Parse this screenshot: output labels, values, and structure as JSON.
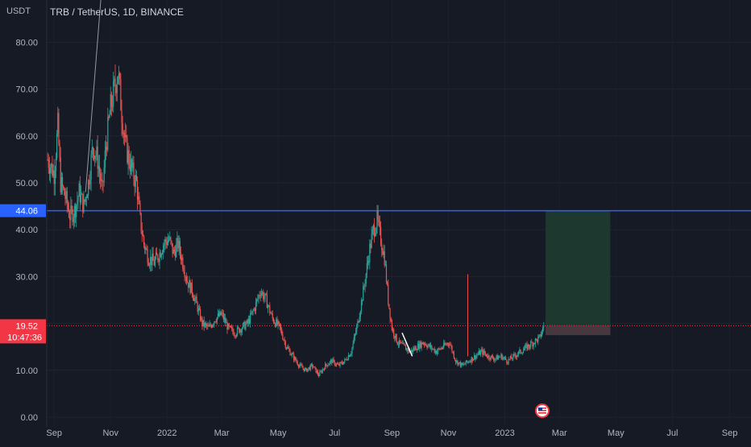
{
  "header": {
    "currency": "USDT",
    "title": "TRB / TetherUS, 1D, BINANCE"
  },
  "tags": {
    "resistance": "44.06",
    "price": "19.52",
    "countdown": "10:47:36"
  },
  "colors": {
    "background": "#161a25",
    "up": "#26a69a",
    "down": "#ef5350",
    "resistance_line": "#2962ff",
    "price_line": "#f23645",
    "target_zone": "#1e3a2f",
    "stop_zone": "#4a3a40"
  },
  "icons": {
    "event_flag": "us-flag-icon"
  },
  "chart_data": {
    "type": "candlestick",
    "title": "TRB / TetherUS, 1D, BINANCE",
    "ylabel": "USDT",
    "ylim": [
      0,
      85
    ],
    "yticks": [
      0,
      10,
      20,
      30,
      40,
      50,
      60,
      70,
      80
    ],
    "ytick_labels": [
      "0.00",
      "10.00",
      "",
      "30.00",
      "40.00",
      "50.00",
      "60.00",
      "70.00",
      "80.00"
    ],
    "xlim": [
      "2021-08-24",
      "2023-09-24"
    ],
    "xticks": [
      {
        "date": "2021-09-01",
        "label": "Sep"
      },
      {
        "date": "2021-11-01",
        "label": "Nov"
      },
      {
        "date": "2022-01-01",
        "label": "2022"
      },
      {
        "date": "2022-03-01",
        "label": "Mar"
      },
      {
        "date": "2022-05-01",
        "label": "May"
      },
      {
        "date": "2022-07-01",
        "label": "Jul"
      },
      {
        "date": "2022-09-01",
        "label": "Sep"
      },
      {
        "date": "2022-11-01",
        "label": "Nov"
      },
      {
        "date": "2023-01-01",
        "label": "2023"
      },
      {
        "date": "2023-03-01",
        "label": "Mar"
      },
      {
        "date": "2023-05-01",
        "label": "May"
      },
      {
        "date": "2023-07-01",
        "label": "Jul"
      },
      {
        "date": "2023-09-01",
        "label": "Sep"
      }
    ],
    "series": [
      {
        "name": "TRBUSDT",
        "close": [
          [
            "2021-08-25",
            55
          ],
          [
            "2021-09-01",
            52
          ],
          [
            "2021-09-05",
            62
          ],
          [
            "2021-09-08",
            50
          ],
          [
            "2021-09-13",
            47
          ],
          [
            "2021-09-18",
            43
          ],
          [
            "2021-09-23",
            44
          ],
          [
            "2021-09-28",
            48
          ],
          [
            "2021-10-03",
            45
          ],
          [
            "2021-10-08",
            50
          ],
          [
            "2021-10-13",
            58
          ],
          [
            "2021-10-18",
            55
          ],
          [
            "2021-10-23",
            48
          ],
          [
            "2021-10-27",
            58
          ],
          [
            "2021-11-01",
            66
          ],
          [
            "2021-11-05",
            70
          ],
          [
            "2021-11-09",
            74
          ],
          [
            "2021-11-13",
            65
          ],
          [
            "2021-11-17",
            58
          ],
          [
            "2021-11-21",
            55
          ],
          [
            "2021-11-25",
            52
          ],
          [
            "2021-11-29",
            50
          ],
          [
            "2021-12-03",
            42
          ],
          [
            "2021-12-07",
            37
          ],
          [
            "2021-12-12",
            34
          ],
          [
            "2021-12-18",
            33
          ],
          [
            "2021-12-24",
            35
          ],
          [
            "2021-12-28",
            37
          ],
          [
            "2022-01-03",
            38
          ],
          [
            "2022-01-08",
            35
          ],
          [
            "2022-01-13",
            37
          ],
          [
            "2022-01-18",
            33
          ],
          [
            "2022-01-23",
            29
          ],
          [
            "2022-01-28",
            27
          ],
          [
            "2022-02-02",
            24
          ],
          [
            "2022-02-08",
            20
          ],
          [
            "2022-02-15",
            19
          ],
          [
            "2022-02-22",
            21
          ],
          [
            "2022-03-01",
            22
          ],
          [
            "2022-03-08",
            19
          ],
          [
            "2022-03-15",
            18
          ],
          [
            "2022-03-22",
            19
          ],
          [
            "2022-03-29",
            20
          ],
          [
            "2022-04-05",
            23
          ],
          [
            "2022-04-12",
            27
          ],
          [
            "2022-04-18",
            25
          ],
          [
            "2022-04-25",
            21
          ],
          [
            "2022-05-03",
            19
          ],
          [
            "2022-05-10",
            15
          ],
          [
            "2022-05-17",
            13
          ],
          [
            "2022-05-24",
            11
          ],
          [
            "2022-05-31",
            10
          ],
          [
            "2022-06-07",
            11
          ],
          [
            "2022-06-14",
            9
          ],
          [
            "2022-06-21",
            11
          ],
          [
            "2022-06-28",
            12
          ],
          [
            "2022-07-05",
            11
          ],
          [
            "2022-07-12",
            12
          ],
          [
            "2022-07-19",
            14
          ],
          [
            "2022-07-26",
            20
          ],
          [
            "2022-08-02",
            28
          ],
          [
            "2022-08-08",
            36
          ],
          [
            "2022-08-12",
            40
          ],
          [
            "2022-08-16",
            42
          ],
          [
            "2022-08-20",
            38
          ],
          [
            "2022-08-24",
            34
          ],
          [
            "2022-08-28",
            25
          ],
          [
            "2022-09-01",
            19
          ],
          [
            "2022-09-07",
            16
          ],
          [
            "2022-09-14",
            15
          ],
          [
            "2022-09-21",
            14
          ],
          [
            "2022-09-28",
            15
          ],
          [
            "2022-10-05",
            16
          ],
          [
            "2022-10-12",
            15
          ],
          [
            "2022-10-19",
            14
          ],
          [
            "2022-10-26",
            15
          ],
          [
            "2022-11-02",
            16
          ],
          [
            "2022-11-09",
            12
          ],
          [
            "2022-11-16",
            11
          ],
          [
            "2022-11-23",
            12
          ],
          [
            "2022-11-30",
            13
          ],
          [
            "2022-12-07",
            14
          ],
          [
            "2022-12-14",
            13
          ],
          [
            "2022-12-21",
            12.5
          ],
          [
            "2022-12-28",
            13
          ],
          [
            "2023-01-04",
            12
          ],
          [
            "2023-01-11",
            13
          ],
          [
            "2023-01-18",
            14
          ],
          [
            "2023-01-25",
            15
          ],
          [
            "2023-02-01",
            16
          ],
          [
            "2023-02-08",
            17
          ],
          [
            "2023-02-12",
            19.5
          ]
        ]
      }
    ],
    "annotations": {
      "resistance_level": 44.06,
      "current_price": 19.52,
      "countdown": "10:47:36",
      "position": {
        "start": "2023-02-14",
        "end": "2023-04-25",
        "entry": 19.52,
        "target": 44.06,
        "stop": 17.5
      },
      "trendline": {
        "from": [
          "2021-10-05",
          48
        ],
        "to": [
          "2021-10-25",
          98
        ]
      },
      "small_line": {
        "from": [
          "2022-09-12",
          18
        ],
        "to": [
          "2022-09-23",
          13
        ]
      }
    },
    "grid": true,
    "legend": "none"
  }
}
